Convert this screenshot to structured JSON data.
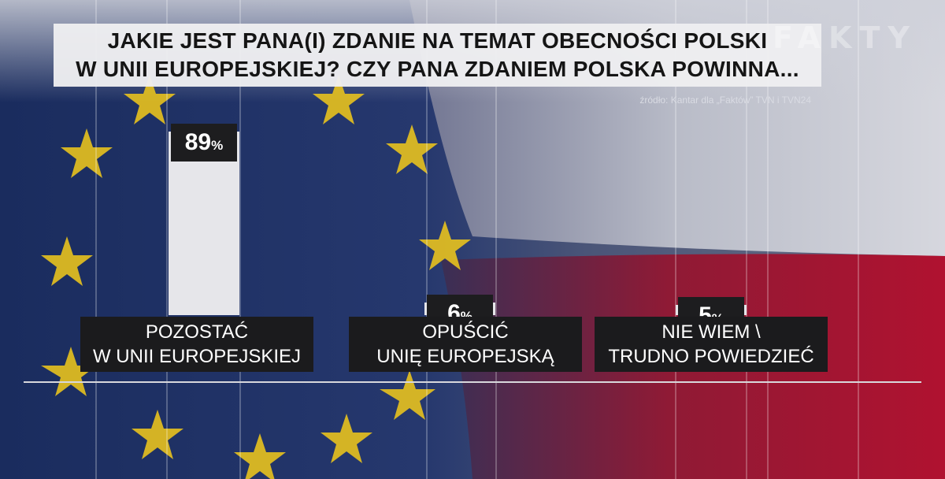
{
  "header": {
    "title_line1": "JAKIE JEST PANA(I) ZDANIE NA TEMAT OBECNOŚCI POLSKI",
    "title_line2": "W UNII EUROPEJSKIEJ? CZY PANA ZDANIEM POLSKA POWINNA...",
    "source": "źródło: Kantar dla „Faktów” TVN i TVN24",
    "logo": "FAKTY"
  },
  "chart_data": {
    "type": "bar",
    "title": "JAKIE JEST PANA(I) ZDANIE NA TEMAT OBECNOŚCI POLSKI W UNII EUROPEJSKIEJ? CZY PANA ZDANIEM POLSKA POWINNA...",
    "categories": [
      [
        "POZOSTAĆ",
        "W UNII EUROPEJSKIEJ"
      ],
      [
        "OPUŚCIĆ",
        "UNIĘ EUROPEJSKĄ"
      ],
      [
        "NIE WIEM \\",
        "TRUDNO POWIEDZIEĆ"
      ]
    ],
    "values": [
      89,
      6,
      5
    ],
    "value_labels": [
      "89",
      "6",
      "5"
    ],
    "unit": "%",
    "ylim": [
      0,
      100
    ],
    "grid": false,
    "colors": {
      "bar": "#e6e6ea",
      "label_box": "#1d1d1f",
      "flag_blue": "#1f3266",
      "flag_red": "#b3112e",
      "star": "#e8c21e"
    }
  }
}
